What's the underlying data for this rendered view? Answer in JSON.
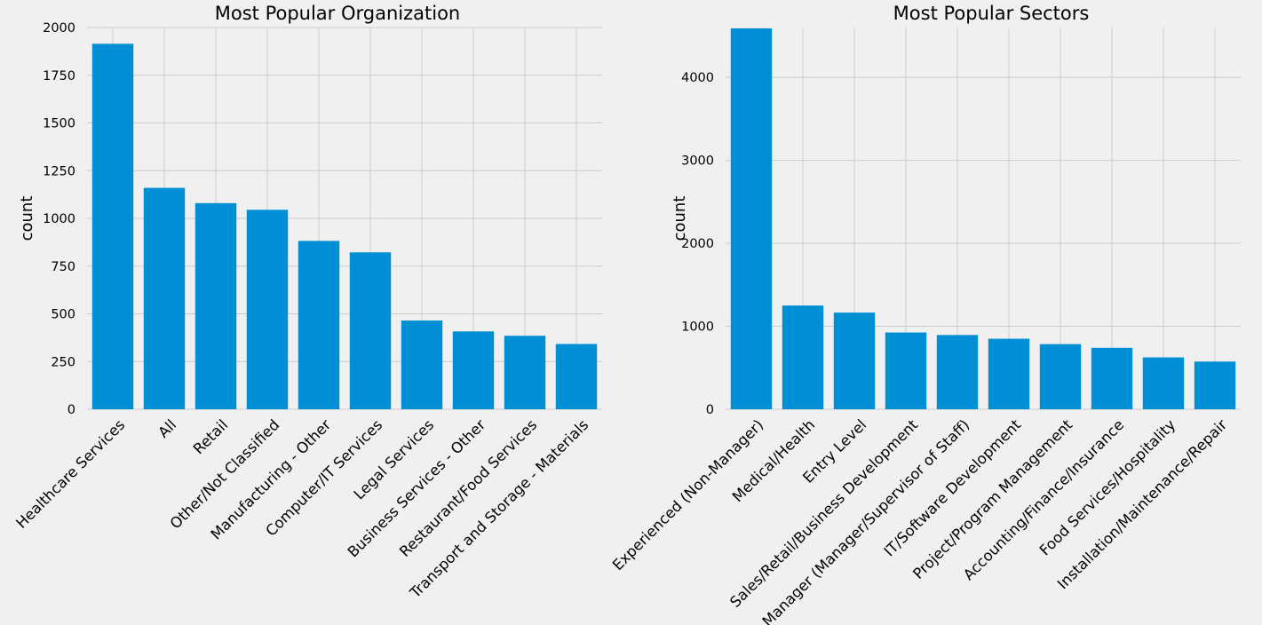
{
  "chart_data": [
    {
      "type": "bar",
      "title": "Most Popular Organization",
      "ylabel": "count",
      "xlabel": "",
      "ylim": [
        0,
        2000
      ],
      "yticks": [
        0,
        250,
        500,
        750,
        1000,
        1250,
        1500,
        1750,
        2000
      ],
      "grid": true,
      "color": "#008fd5",
      "categories": [
        "Healthcare Services",
        "All",
        "Retail",
        "Other/Not Classified",
        "Manufacturing - Other",
        "Computer/IT Services",
        "Legal Services",
        "Business Services - Other",
        "Restaurant/Food Services",
        "Transport and Storage - Materials"
      ],
      "values": [
        1915,
        1160,
        1080,
        1045,
        882,
        822,
        465,
        408,
        385,
        342
      ]
    },
    {
      "type": "bar",
      "title": "Most Popular Sectors",
      "ylabel": "count",
      "xlabel": "",
      "ylim": [
        0,
        4600
      ],
      "yticks": [
        0,
        1000,
        2000,
        3000,
        4000
      ],
      "grid": true,
      "color": "#008fd5",
      "categories": [
        "Experienced (Non-Manager)",
        "Medical/Health",
        "Entry Level",
        "Sales/Retail/Business Development",
        "Manager (Manager/Supervisor of Staff)",
        "IT/Software Development",
        "Project/Program Management",
        "Accounting/Finance/Insurance",
        "Food Services/Hospitality",
        "Installation/Maintenance/Repair"
      ],
      "values": [
        4590,
        1250,
        1165,
        925,
        895,
        850,
        785,
        740,
        625,
        575
      ]
    }
  ]
}
